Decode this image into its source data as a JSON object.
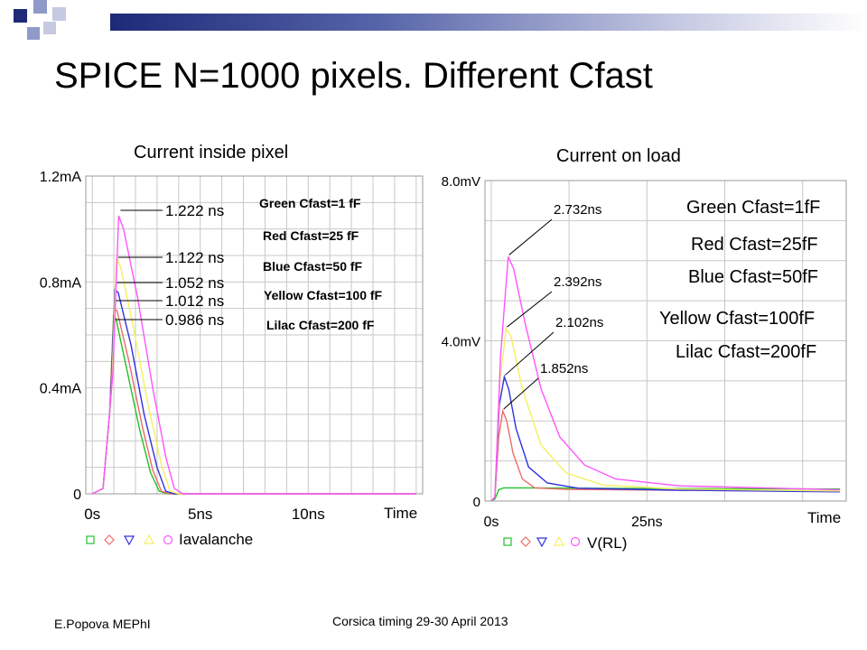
{
  "slide": {
    "title": "SPICE N=1000 pixels. Different Cfast",
    "footer_left": "E.Popova MEPhI",
    "footer_center": "Corsica timing 29-30 April 2013"
  },
  "colors": {
    "green": "#22c02a",
    "red": "#f06a6a",
    "blue": "#3030e0",
    "yellow": "#f4f060",
    "lilac": "#ff55ff",
    "grid": "#c8c8c8",
    "deco_dark": "#1d2a78",
    "deco_light": "#8f9ac8"
  },
  "chart_data": [
    {
      "type": "line",
      "title": "Current inside pixel",
      "xlabel": "Time",
      "legend_variable": "Iavalanche",
      "x_unit": "ns",
      "xlim": [
        -0.3,
        15.3
      ],
      "ylim": [
        0,
        1.2
      ],
      "x_ticks": [
        {
          "v": 0,
          "label": "0s"
        },
        {
          "v": 5,
          "label": "5ns"
        },
        {
          "v": 10,
          "label": "10ns"
        }
      ],
      "y_ticks": [
        {
          "v": 0,
          "label": "0"
        },
        {
          "v": 0.4,
          "label": "0.4mA"
        },
        {
          "v": 0.8,
          "label": "0.8mA"
        },
        {
          "v": 1.2,
          "label": "1.2mA"
        }
      ],
      "legend": [
        "Green Cfast=1 fF",
        "Red Cfast=25 fF",
        "Blue Cfast=50 fF",
        "Yellow Cfast=100 fF",
        "Lilac Cfast=200 fF"
      ],
      "annotations": [
        "1.222 ns",
        "1.122 ns",
        "1.052 ns",
        "1.012 ns",
        "0.986 ns"
      ],
      "series": [
        {
          "name": "Green Cfast=1 fF",
          "color_key": "green",
          "points": [
            [
              0,
              0
            ],
            [
              0.5,
              0.02
            ],
            [
              0.8,
              0.3
            ],
            [
              0.986,
              0.67
            ],
            [
              1.1,
              0.66
            ],
            [
              1.6,
              0.47
            ],
            [
              2.2,
              0.24
            ],
            [
              2.7,
              0.08
            ],
            [
              3.1,
              0.01
            ],
            [
              3.5,
              0
            ],
            [
              15,
              0
            ]
          ]
        },
        {
          "name": "Red Cfast=25 fF",
          "color_key": "red",
          "points": [
            [
              0,
              0
            ],
            [
              0.5,
              0.02
            ],
            [
              0.8,
              0.3
            ],
            [
              1.012,
              0.7
            ],
            [
              1.15,
              0.69
            ],
            [
              1.7,
              0.5
            ],
            [
              2.3,
              0.26
            ],
            [
              2.8,
              0.09
            ],
            [
              3.2,
              0.01
            ],
            [
              3.6,
              0
            ],
            [
              15,
              0
            ]
          ]
        },
        {
          "name": "Blue Cfast=50 fF",
          "color_key": "blue",
          "points": [
            [
              0,
              0
            ],
            [
              0.5,
              0.02
            ],
            [
              0.85,
              0.35
            ],
            [
              1.052,
              0.77
            ],
            [
              1.2,
              0.76
            ],
            [
              1.8,
              0.56
            ],
            [
              2.4,
              0.3
            ],
            [
              3.0,
              0.1
            ],
            [
              3.4,
              0.01
            ],
            [
              3.8,
              0
            ],
            [
              15,
              0
            ]
          ]
        },
        {
          "name": "Yellow Cfast=100 fF",
          "color_key": "yellow",
          "points": [
            [
              0,
              0
            ],
            [
              0.5,
              0.02
            ],
            [
              0.9,
              0.4
            ],
            [
              1.122,
              0.89
            ],
            [
              1.3,
              0.86
            ],
            [
              1.9,
              0.63
            ],
            [
              2.6,
              0.33
            ],
            [
              3.2,
              0.11
            ],
            [
              3.6,
              0.01
            ],
            [
              4.0,
              0
            ],
            [
              15,
              0
            ]
          ]
        },
        {
          "name": "Lilac Cfast=200 fF",
          "color_key": "lilac",
          "points": [
            [
              0,
              0
            ],
            [
              0.5,
              0.02
            ],
            [
              0.95,
              0.45
            ],
            [
              1.222,
              1.05
            ],
            [
              1.45,
              1.0
            ],
            [
              2.1,
              0.74
            ],
            [
              2.8,
              0.4
            ],
            [
              3.4,
              0.14
            ],
            [
              3.8,
              0.02
            ],
            [
              4.2,
              0
            ],
            [
              15,
              0
            ]
          ]
        }
      ]
    },
    {
      "type": "line",
      "title": "Current on load",
      "xlabel": "Time",
      "legend_variable": "V(RL)",
      "x_unit": "ns",
      "xlim": [
        -1,
        57
      ],
      "ylim": [
        0,
        8.0
      ],
      "x_ticks": [
        {
          "v": 0,
          "label": "0s"
        },
        {
          "v": 25,
          "label": "25ns"
        }
      ],
      "y_ticks": [
        {
          "v": 0,
          "label": "0"
        },
        {
          "v": 4.0,
          "label": "4.0mV"
        },
        {
          "v": 8.0,
          "label": "8.0mV"
        }
      ],
      "legend": [
        "Green Cfast=1fF",
        "Red Cfast=25fF",
        "Blue Cfast=50fF",
        "Yellow Cfast=100fF",
        "Lilac Cfast=200fF"
      ],
      "annotations": [
        "2.732ns",
        "2.392ns",
        "2.102ns",
        "1.852ns"
      ],
      "series": [
        {
          "name": "Green Cfast=1fF",
          "color_key": "green",
          "points": [
            [
              0,
              0
            ],
            [
              0.6,
              0.05
            ],
            [
              1.2,
              0.28
            ],
            [
              2,
              0.33
            ],
            [
              5,
              0.33
            ],
            [
              15,
              0.32
            ],
            [
              30,
              0.31
            ],
            [
              56,
              0.3
            ]
          ]
        },
        {
          "name": "Red Cfast=25fF",
          "color_key": "red",
          "points": [
            [
              0,
              0
            ],
            [
              0.6,
              0.1
            ],
            [
              1.2,
              1.6
            ],
            [
              1.852,
              2.25
            ],
            [
              2.5,
              2.0
            ],
            [
              3.5,
              1.2
            ],
            [
              5,
              0.55
            ],
            [
              7,
              0.33
            ],
            [
              12,
              0.29
            ],
            [
              30,
              0.27
            ],
            [
              56,
              0.24
            ]
          ]
        },
        {
          "name": "Blue Cfast=50fF",
          "color_key": "blue",
          "points": [
            [
              0,
              0
            ],
            [
              0.6,
              0.1
            ],
            [
              1.3,
              2.4
            ],
            [
              2.102,
              3.1
            ],
            [
              2.8,
              2.8
            ],
            [
              4,
              1.8
            ],
            [
              6,
              0.85
            ],
            [
              9,
              0.45
            ],
            [
              14,
              0.32
            ],
            [
              30,
              0.27
            ],
            [
              56,
              0.23
            ]
          ]
        },
        {
          "name": "Yellow Cfast=100fF",
          "color_key": "yellow",
          "points": [
            [
              0,
              0
            ],
            [
              0.6,
              0.1
            ],
            [
              1.4,
              3.0
            ],
            [
              2.392,
              4.3
            ],
            [
              3.2,
              4.1
            ],
            [
              5,
              2.8
            ],
            [
              8,
              1.4
            ],
            [
              12,
              0.7
            ],
            [
              18,
              0.4
            ],
            [
              30,
              0.3
            ],
            [
              56,
              0.25
            ]
          ]
        },
        {
          "name": "Lilac Cfast=200fF",
          "color_key": "lilac",
          "points": [
            [
              0,
              0
            ],
            [
              0.6,
              0.1
            ],
            [
              1.5,
              3.6
            ],
            [
              2.732,
              6.1
            ],
            [
              3.6,
              5.8
            ],
            [
              5.5,
              4.4
            ],
            [
              8,
              2.8
            ],
            [
              11,
              1.6
            ],
            [
              15,
              0.9
            ],
            [
              20,
              0.55
            ],
            [
              30,
              0.38
            ],
            [
              56,
              0.28
            ]
          ]
        }
      ]
    }
  ]
}
